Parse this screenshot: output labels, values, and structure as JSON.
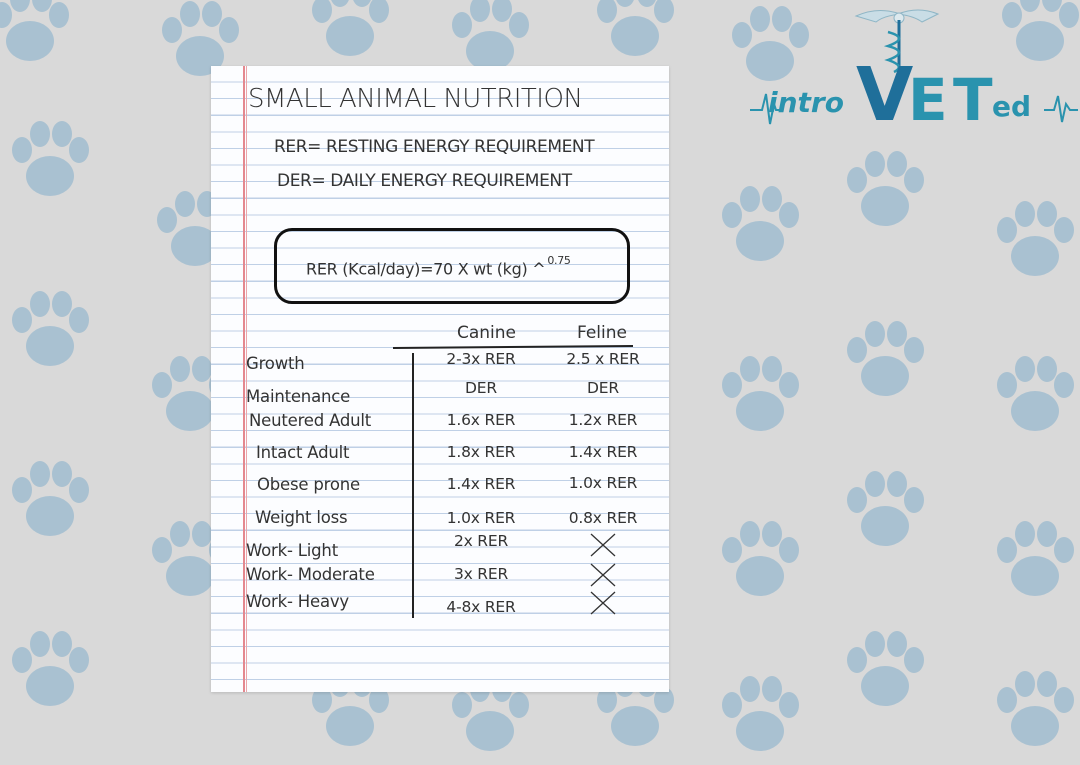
{
  "colors": {
    "background": "#d9d9d9",
    "paw": "#a9c1d1",
    "logo_blue": "#2a93ae",
    "logo_dark_blue": "#1f6f9a"
  },
  "logo": {
    "icon": "caduceus-heartbeat-icon",
    "text_intro": "intro",
    "text_v": "V",
    "text_e": "E",
    "text_t": "T",
    "text_ed": "ed"
  },
  "note": {
    "title": "SMALL ANIMAL NUTRITION",
    "abbreviations": [
      "RER= RESTING ENERGY REQUIREMENT",
      "DER= DAILY ENERGY REQUIREMENT"
    ],
    "formula": {
      "text": "RER (Kcal/day)=70 X wt (kg) ^",
      "exponent": "0.75"
    },
    "columns": {
      "canine": "Canine",
      "feline": "Feline"
    },
    "rows": [
      {
        "label": "Growth",
        "canine": "2-3x RER",
        "feline": "2.5 x RER"
      },
      {
        "label": "Maintenance",
        "canine": "DER",
        "feline": "DER"
      },
      {
        "label": "Neutered Adult",
        "canine": "1.6x RER",
        "feline": "1.2x RER"
      },
      {
        "label": "Intact Adult",
        "canine": "1.8x RER",
        "feline": "1.4x RER"
      },
      {
        "label": "Obese prone",
        "canine": "1.4x RER",
        "feline": "1.0x RER"
      },
      {
        "label": "Weight loss",
        "canine": "1.0x RER",
        "feline": "0.8x RER"
      },
      {
        "label": "Work- Light",
        "canine": "2x RER",
        "feline": "cross-mark-icon"
      },
      {
        "label": "Work- Moderate",
        "canine": "3x RER",
        "feline": "cross-mark-icon"
      },
      {
        "label": "Work- Heavy",
        "canine": "4-8x RER",
        "feline": "cross-mark-icon"
      }
    ]
  }
}
